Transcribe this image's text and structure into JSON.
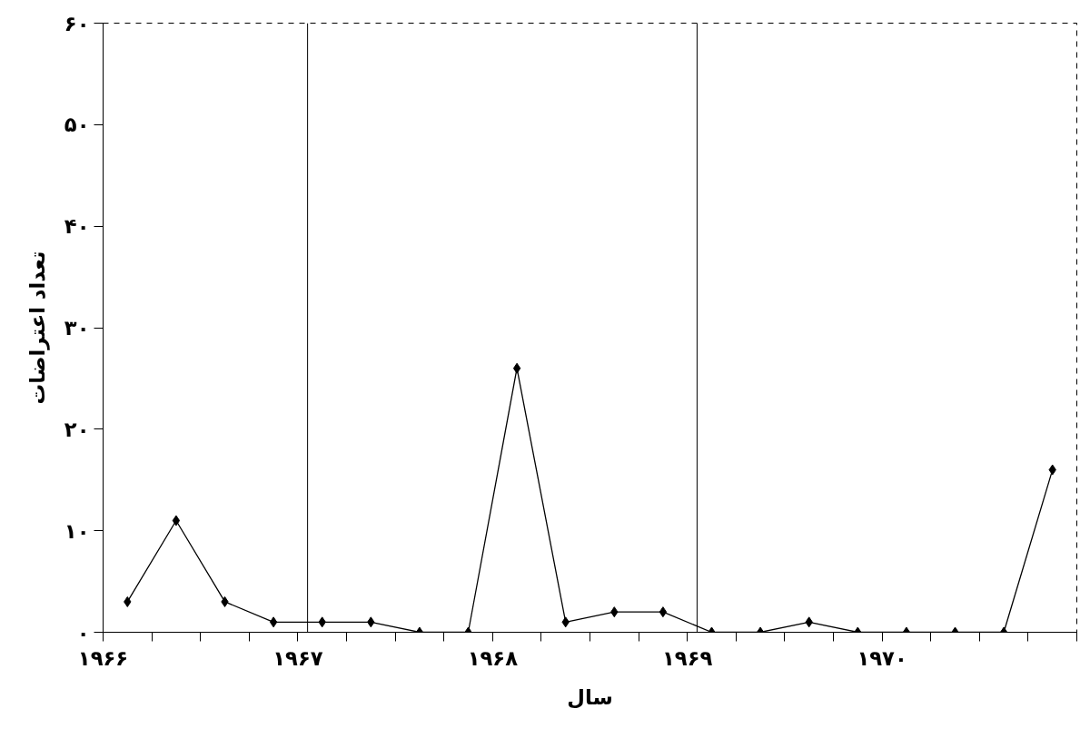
{
  "chart_data": {
    "type": "line",
    "xlabel": "سال",
    "ylabel": "تعداد اعتراضات",
    "x": [
      1966.125,
      1966.375,
      1966.625,
      1966.875,
      1967.125,
      1967.375,
      1967.625,
      1967.875,
      1968.125,
      1968.375,
      1968.625,
      1968.875,
      1969.125,
      1969.375,
      1969.625,
      1969.875,
      1970.125,
      1970.375,
      1970.625,
      1970.875
    ],
    "series": [
      {
        "color": "#000000",
        "values": [
          3,
          11,
          3,
          1,
          1,
          1,
          0,
          0,
          26,
          1,
          2,
          2,
          0,
          0,
          1,
          0,
          0,
          0,
          0,
          16
        ]
      }
    ],
    "xlim": [
      1966,
      1971
    ],
    "xticks": [
      {
        "value": 1966,
        "label": "۱۹۶۶"
      },
      {
        "value": 1966.25,
        "label": null
      },
      {
        "value": 1966.5,
        "label": null
      },
      {
        "value": 1966.75,
        "label": null
      },
      {
        "value": 1967,
        "label": "۱۹۶۷"
      },
      {
        "value": 1967.25,
        "label": null
      },
      {
        "value": 1967.5,
        "label": null
      },
      {
        "value": 1967.75,
        "label": null
      },
      {
        "value": 1968,
        "label": "۱۹۶۸"
      },
      {
        "value": 1968.25,
        "label": null
      },
      {
        "value": 1968.5,
        "label": null
      },
      {
        "value": 1968.75,
        "label": null
      },
      {
        "value": 1969,
        "label": "۱۹۶۹"
      },
      {
        "value": 1969.25,
        "label": null
      },
      {
        "value": 1969.5,
        "label": null
      },
      {
        "value": 1969.75,
        "label": null
      },
      {
        "value": 1970,
        "label": "۱۹۷۰"
      },
      {
        "value": 1970.25,
        "label": null
      },
      {
        "value": 1970.5,
        "label": null
      },
      {
        "value": 1970.75,
        "label": null
      },
      {
        "value": 1971,
        "label": null
      }
    ],
    "ylim": [
      0,
      60
    ],
    "yticks": [
      {
        "value": 0,
        "label": "۰"
      },
      {
        "value": 10,
        "label": "۱۰"
      },
      {
        "value": 20,
        "label": "۲۰"
      },
      {
        "value": 30,
        "label": "۳۰"
      },
      {
        "value": 40,
        "label": "۴۰"
      },
      {
        "value": 50,
        "label": "۵۰"
      },
      {
        "value": 60,
        "label": "۶۰"
      }
    ],
    "ref_lines": [
      {
        "axis": "x",
        "value": 1967.05,
        "color": "#000000"
      },
      {
        "axis": "x",
        "value": 1969.05,
        "color": "#000000"
      }
    ],
    "grid": false,
    "marker": "diamond",
    "line_style": "solid"
  }
}
